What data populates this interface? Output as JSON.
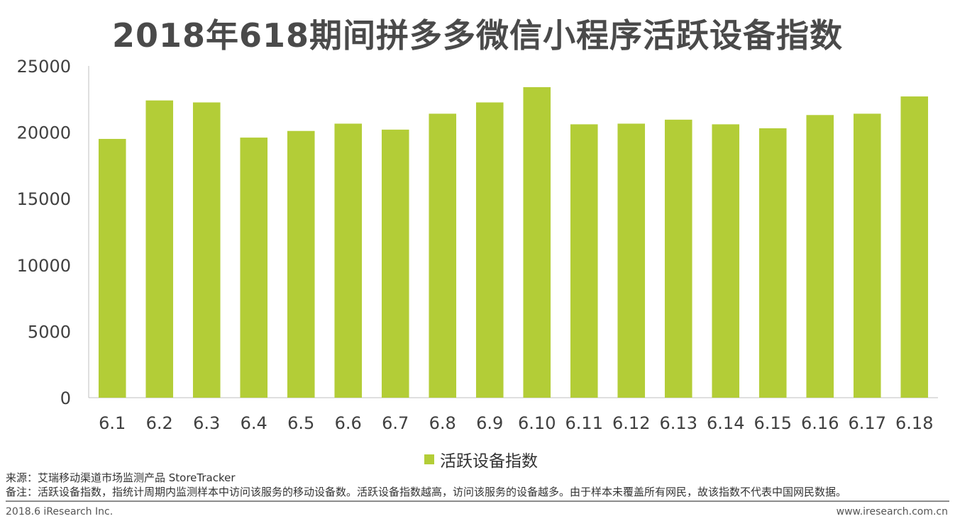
{
  "chart_data": {
    "type": "bar",
    "title": "2018年618期间拼多多微信小程序活跃设备指数",
    "categories": [
      "6.1",
      "6.2",
      "6.3",
      "6.4",
      "6.5",
      "6.6",
      "6.7",
      "6.8",
      "6.9",
      "6.10",
      "6.11",
      "6.12",
      "6.13",
      "6.14",
      "6.15",
      "6.16",
      "6.17",
      "6.18"
    ],
    "series": [
      {
        "name": "活跃设备指数",
        "values": [
          19500,
          22400,
          22250,
          19600,
          20100,
          20650,
          20200,
          21400,
          22250,
          23400,
          20600,
          20650,
          20950,
          20600,
          20300,
          21300,
          21400,
          22700
        ]
      }
    ],
    "y_ticks": [
      "0",
      "5000",
      "10000",
      "15000",
      "20000",
      "25000"
    ],
    "ylim": [
      0,
      25000
    ],
    "xlabel": "",
    "ylabel": "",
    "grid": false,
    "legend_position": "bottom",
    "bar_color": "#b3cd37"
  },
  "notes": {
    "source": "来源：艾瑞移动渠道市场监测产品 StoreTracker",
    "remark": "备注：活跃设备指数，指统计周期内监测样本中访问该服务的移动设备数。活跃设备指数越高，访问该服务的设备越多。由于样本未覆盖所有网民，故该指数不代表中国网民数据。"
  },
  "footer": {
    "left": "2018.6 iResearch Inc.",
    "right": "www.iresearch.com.cn"
  }
}
